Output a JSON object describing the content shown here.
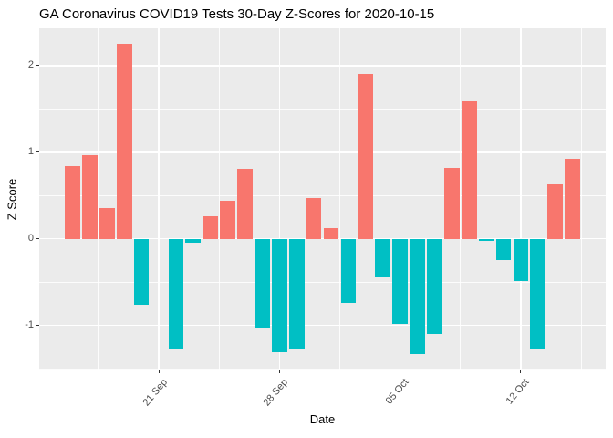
{
  "chart_data": {
    "type": "bar",
    "title": "GA Coronavirus COVID19 Tests 30-Day Z-Scores for 2020-10-15",
    "xlabel": "Date",
    "ylabel": "Z Score",
    "categories": [
      "16 Sep",
      "17 Sep",
      "18 Sep",
      "19 Sep",
      "20 Sep",
      "21 Sep",
      "22 Sep",
      "23 Sep",
      "24 Sep",
      "25 Sep",
      "26 Sep",
      "27 Sep",
      "28 Sep",
      "29 Sep",
      "30 Sep",
      "01 Oct",
      "02 Oct",
      "03 Oct",
      "04 Oct",
      "05 Oct",
      "06 Oct",
      "07 Oct",
      "08 Oct",
      "09 Oct",
      "10 Oct",
      "11 Oct",
      "12 Oct",
      "13 Oct",
      "14 Oct",
      "15 Oct"
    ],
    "values": [
      0.84,
      0.97,
      0.36,
      2.25,
      -0.76,
      0.0,
      -1.27,
      -0.05,
      0.26,
      0.44,
      0.81,
      -1.02,
      -1.31,
      -1.28,
      0.47,
      0.12,
      -0.74,
      1.9,
      -0.45,
      -0.98,
      -1.33,
      -1.1,
      0.82,
      1.59,
      -0.02,
      -0.25,
      -0.49,
      -1.27,
      0.63,
      0.92
    ],
    "colors": {
      "positive": "#F8766D",
      "negative": "#00BFC4"
    },
    "ylim": [
      -1.52,
      2.43
    ],
    "yticks": [
      {
        "value": -1,
        "label": "-1"
      },
      {
        "value": 0,
        "label": "0"
      },
      {
        "value": 1,
        "label": "1"
      },
      {
        "value": 2,
        "label": "2"
      }
    ],
    "y_minor": [
      -1.5,
      -0.5,
      0.5,
      1.5
    ],
    "xticks": [
      {
        "index": 5,
        "label": "21 Sep"
      },
      {
        "index": 12,
        "label": "28 Sep"
      },
      {
        "index": 19,
        "label": "05 Oct"
      },
      {
        "index": 26,
        "label": "12 Oct"
      }
    ],
    "x_minor_indices": [
      1.5,
      8.5,
      15.5,
      22.5,
      29.5
    ],
    "grid": true,
    "legend": "none",
    "panel_background": "#EBEBEB",
    "grid_color": "#FFFFFF",
    "tick_label_color": "#4D4D4D"
  }
}
